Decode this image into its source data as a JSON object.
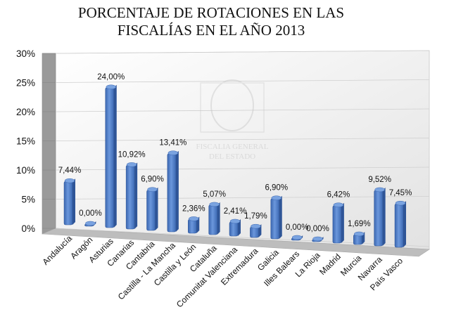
{
  "chart_data": {
    "type": "bar",
    "title_lines": [
      "PORCENTAJE DE ROTACIONES EN LAS",
      "FISCALÍAS EN EL AÑO 2013"
    ],
    "categories": [
      "Andalucía",
      "Aragón",
      "Asturias",
      "Canarias",
      "Cantabria",
      "Castilla - La Mancha",
      "Castilla y León",
      "Cataluña",
      "Comunitat Valenciana",
      "Extremadura",
      "Galicia",
      "Illes Balears",
      "La Rioja",
      "Madrid",
      "Murcia",
      "Navarra",
      "País Vasco"
    ],
    "values": [
      7.44,
      0.0,
      24.0,
      10.92,
      6.9,
      13.41,
      2.36,
      5.07,
      2.41,
      1.79,
      6.9,
      0.0,
      0.0,
      6.42,
      1.69,
      9.52,
      7.45
    ],
    "data_labels": [
      "7,44%",
      "0,00%",
      "24,00%",
      "10,92%",
      "6,90%",
      "13,41%",
      "2,36%",
      "5,07%",
      "2,41%",
      "1,79%",
      "6,90%",
      "0,00%",
      "0,00%",
      "6,42%",
      "1,69%",
      "9,52%",
      "7,45%"
    ],
    "y_ticks": [
      "0%",
      "5%",
      "10%",
      "15%",
      "20%",
      "25%",
      "30%"
    ],
    "ylim": [
      0,
      30
    ],
    "bar_color": "#4a7bc8",
    "grid": true,
    "style": "3d"
  },
  "watermark": {
    "lines": [
      "FISCALIA GENERAL",
      "DEL ESTADO"
    ]
  }
}
